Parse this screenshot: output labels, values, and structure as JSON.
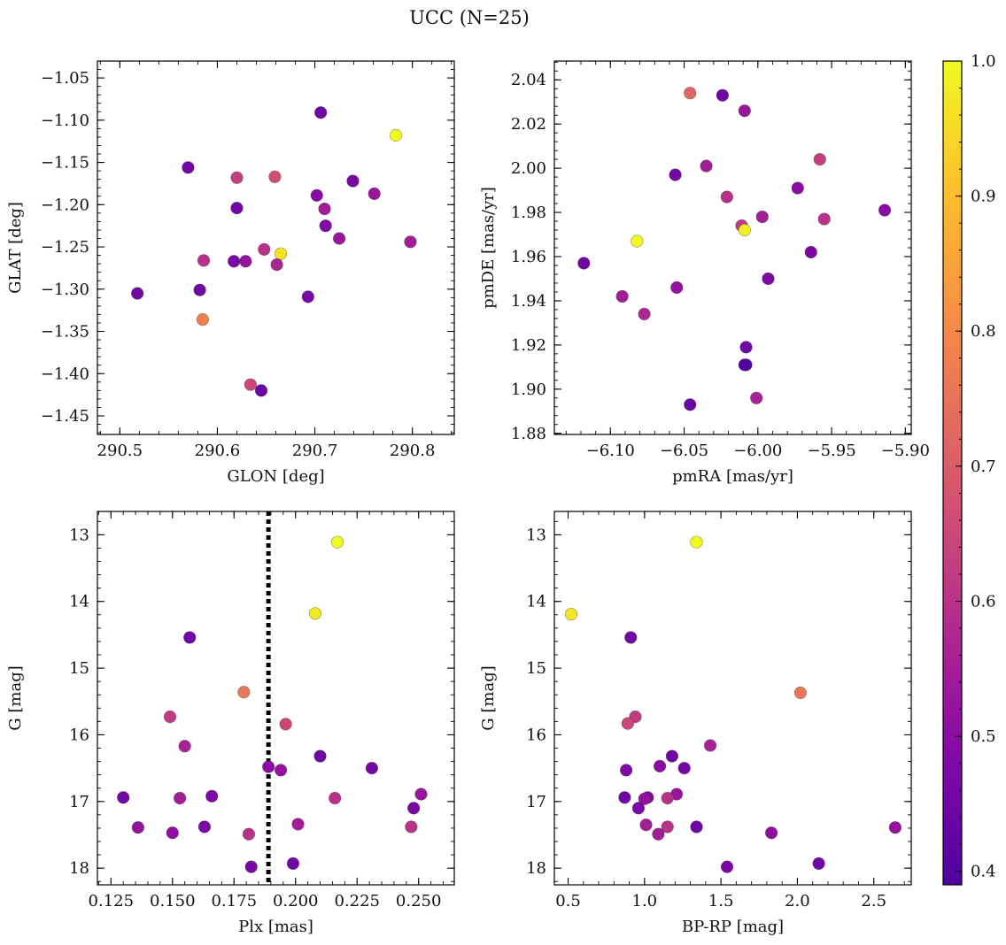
{
  "figure": {
    "title": "UCC (N=25)"
  },
  "colorbar": {
    "range": [
      0.39,
      1.0
    ],
    "ticks": [
      0.4,
      0.5,
      0.6,
      0.7,
      0.8,
      0.9,
      1.0
    ],
    "tick_labels": [
      "0.4",
      "0.5",
      "0.6",
      "0.7",
      "0.8",
      "0.9",
      "1.0"
    ],
    "colormap": "plasma"
  },
  "chart_data": [
    {
      "type": "scatter",
      "xlabel": "GLON [deg]",
      "ylabel": "GLAT [deg]",
      "xlim": [
        290.477,
        290.843
      ],
      "ylim": [
        -1.472,
        -1.03
      ],
      "xticks": [
        290.5,
        290.6,
        290.7,
        290.8
      ],
      "xtick_labels": [
        "290.5",
        "290.6",
        "290.7",
        "290.8"
      ],
      "yticks": [
        -1.45,
        -1.4,
        -1.35,
        -1.3,
        -1.25,
        -1.2,
        -1.15,
        -1.1,
        -1.05
      ],
      "ytick_labels": [
        "−1.45",
        "−1.40",
        "−1.35",
        "−1.30",
        "−1.25",
        "−1.20",
        "−1.15",
        "−1.10",
        "−1.05"
      ],
      "inverted_y": false,
      "points": [
        {
          "x": 290.706,
          "y": -1.091,
          "c": 0.45
        },
        {
          "x": 290.783,
          "y": -1.118,
          "c": 1.0
        },
        {
          "x": 290.57,
          "y": -1.156,
          "c": 0.45
        },
        {
          "x": 290.62,
          "y": -1.168,
          "c": 0.63
        },
        {
          "x": 290.659,
          "y": -1.167,
          "c": 0.67
        },
        {
          "x": 290.739,
          "y": -1.172,
          "c": 0.47
        },
        {
          "x": 290.761,
          "y": -1.187,
          "c": 0.53
        },
        {
          "x": 290.702,
          "y": -1.189,
          "c": 0.5
        },
        {
          "x": 290.62,
          "y": -1.204,
          "c": 0.45
        },
        {
          "x": 290.71,
          "y": -1.205,
          "c": 0.55
        },
        {
          "x": 290.711,
          "y": -1.225,
          "c": 0.48
        },
        {
          "x": 290.648,
          "y": -1.253,
          "c": 0.6
        },
        {
          "x": 290.665,
          "y": -1.258,
          "c": 0.96
        },
        {
          "x": 290.725,
          "y": -1.24,
          "c": 0.53
        },
        {
          "x": 290.798,
          "y": -1.244,
          "c": 0.55
        },
        {
          "x": 290.586,
          "y": -1.266,
          "c": 0.6
        },
        {
          "x": 290.617,
          "y": -1.267,
          "c": 0.47
        },
        {
          "x": 290.629,
          "y": -1.267,
          "c": 0.52
        },
        {
          "x": 290.661,
          "y": -1.271,
          "c": 0.57
        },
        {
          "x": 290.518,
          "y": -1.305,
          "c": 0.46
        },
        {
          "x": 290.582,
          "y": -1.301,
          "c": 0.45
        },
        {
          "x": 290.693,
          "y": -1.309,
          "c": 0.47
        },
        {
          "x": 290.585,
          "y": -1.336,
          "c": 0.78
        },
        {
          "x": 290.634,
          "y": -1.413,
          "c": 0.65
        },
        {
          "x": 290.645,
          "y": -1.42,
          "c": 0.44
        }
      ]
    },
    {
      "type": "scatter",
      "xlabel": "pmRA [mas/yr]",
      "ylabel": "pmDE [mas/yr]",
      "xlim": [
        -6.138,
        -5.896
      ],
      "ylim": [
        1.8795,
        2.0485
      ],
      "xticks": [
        -6.1,
        -6.05,
        -6.0,
        -5.95,
        -5.9
      ],
      "xtick_labels": [
        "−6.10",
        "−6.05",
        "−6.00",
        "−5.95",
        "−5.90"
      ],
      "yticks": [
        1.88,
        1.9,
        1.92,
        1.94,
        1.96,
        1.98,
        2.0,
        2.02,
        2.04
      ],
      "ytick_labels": [
        "1.88",
        "1.90",
        "1.92",
        "1.94",
        "1.96",
        "1.98",
        "2.00",
        "2.02",
        "2.04"
      ],
      "inverted_y": false,
      "points": [
        {
          "x": -6.046,
          "y": 2.034,
          "c": 0.72
        },
        {
          "x": -6.024,
          "y": 2.033,
          "c": 0.45
        },
        {
          "x": -6.009,
          "y": 2.026,
          "c": 0.53
        },
        {
          "x": -5.958,
          "y": 2.004,
          "c": 0.63
        },
        {
          "x": -6.035,
          "y": 2.001,
          "c": 0.55
        },
        {
          "x": -6.056,
          "y": 1.997,
          "c": 0.46
        },
        {
          "x": -5.973,
          "y": 1.991,
          "c": 0.5
        },
        {
          "x": -6.021,
          "y": 1.987,
          "c": 0.6
        },
        {
          "x": -5.914,
          "y": 1.981,
          "c": 0.5
        },
        {
          "x": -5.997,
          "y": 1.978,
          "c": 0.55
        },
        {
          "x": -5.955,
          "y": 1.977,
          "c": 0.6
        },
        {
          "x": -6.011,
          "y": 1.974,
          "c": 0.62
        },
        {
          "x": -6.009,
          "y": 1.972,
          "c": 0.98
        },
        {
          "x": -6.082,
          "y": 1.967,
          "c": 1.0
        },
        {
          "x": -5.964,
          "y": 1.962,
          "c": 0.47
        },
        {
          "x": -6.118,
          "y": 1.957,
          "c": 0.45
        },
        {
          "x": -5.993,
          "y": 1.95,
          "c": 0.48
        },
        {
          "x": -6.055,
          "y": 1.946,
          "c": 0.52
        },
        {
          "x": -6.092,
          "y": 1.942,
          "c": 0.55
        },
        {
          "x": -6.077,
          "y": 1.934,
          "c": 0.57
        },
        {
          "x": -6.008,
          "y": 1.919,
          "c": 0.45
        },
        {
          "x": -6.008,
          "y": 1.911,
          "c": 0.42
        },
        {
          "x": -6.009,
          "y": 1.911,
          "c": 0.4
        },
        {
          "x": -6.001,
          "y": 1.896,
          "c": 0.56
        },
        {
          "x": -6.046,
          "y": 1.893,
          "c": 0.44
        }
      ]
    },
    {
      "type": "scatter",
      "xlabel": "Plx [mas]",
      "ylabel": "G [mag]",
      "xlim": [
        0.1195,
        0.2645
      ],
      "ylim": [
        18.25,
        12.65
      ],
      "xticks": [
        0.125,
        0.15,
        0.175,
        0.2,
        0.225,
        0.25
      ],
      "xtick_labels": [
        "0.125",
        "0.150",
        "0.175",
        "0.200",
        "0.225",
        "0.250"
      ],
      "yticks": [
        13,
        14,
        15,
        16,
        17,
        18
      ],
      "ytick_labels": [
        "13",
        "14",
        "15",
        "16",
        "17",
        "18"
      ],
      "inverted_y": true,
      "vline": {
        "x": 0.189,
        "style": "dotted"
      },
      "points": [
        {
          "x": 0.217,
          "y": 13.11,
          "c": 1.0
        },
        {
          "x": 0.208,
          "y": 14.18,
          "c": 0.97
        },
        {
          "x": 0.157,
          "y": 14.54,
          "c": 0.45
        },
        {
          "x": 0.179,
          "y": 15.36,
          "c": 0.76
        },
        {
          "x": 0.149,
          "y": 15.73,
          "c": 0.62
        },
        {
          "x": 0.196,
          "y": 15.84,
          "c": 0.65
        },
        {
          "x": 0.155,
          "y": 16.17,
          "c": 0.56
        },
        {
          "x": 0.21,
          "y": 16.32,
          "c": 0.45
        },
        {
          "x": 0.189,
          "y": 16.48,
          "c": 0.5
        },
        {
          "x": 0.231,
          "y": 16.5,
          "c": 0.46
        },
        {
          "x": 0.194,
          "y": 16.53,
          "c": 0.52
        },
        {
          "x": 0.251,
          "y": 16.89,
          "c": 0.53
        },
        {
          "x": 0.166,
          "y": 16.92,
          "c": 0.48
        },
        {
          "x": 0.13,
          "y": 16.94,
          "c": 0.45
        },
        {
          "x": 0.153,
          "y": 16.95,
          "c": 0.55
        },
        {
          "x": 0.216,
          "y": 16.95,
          "c": 0.6
        },
        {
          "x": 0.248,
          "y": 17.1,
          "c": 0.47
        },
        {
          "x": 0.201,
          "y": 17.34,
          "c": 0.55
        },
        {
          "x": 0.136,
          "y": 17.39,
          "c": 0.52
        },
        {
          "x": 0.163,
          "y": 17.38,
          "c": 0.47
        },
        {
          "x": 0.247,
          "y": 17.38,
          "c": 0.6
        },
        {
          "x": 0.15,
          "y": 17.47,
          "c": 0.51
        },
        {
          "x": 0.181,
          "y": 17.49,
          "c": 0.6
        },
        {
          "x": 0.182,
          "y": 17.98,
          "c": 0.47
        },
        {
          "x": 0.199,
          "y": 17.93,
          "c": 0.45
        }
      ]
    },
    {
      "type": "scatter",
      "xlabel": "BP-RP [mag]",
      "ylabel": "G [mag]",
      "xlim": [
        0.41,
        2.745
      ],
      "ylim": [
        18.25,
        12.65
      ],
      "xticks": [
        0.5,
        1.0,
        1.5,
        2.0,
        2.5
      ],
      "xtick_labels": [
        "0.5",
        "1.0",
        "1.5",
        "2.0",
        "2.5"
      ],
      "yticks": [
        13,
        14,
        15,
        16,
        17,
        18
      ],
      "ytick_labels": [
        "13",
        "14",
        "15",
        "16",
        "17",
        "18"
      ],
      "inverted_y": true,
      "points": [
        {
          "x": 1.34,
          "y": 13.11,
          "c": 1.0
        },
        {
          "x": 0.52,
          "y": 14.19,
          "c": 0.97
        },
        {
          "x": 0.91,
          "y": 14.54,
          "c": 0.45
        },
        {
          "x": 2.02,
          "y": 15.37,
          "c": 0.76
        },
        {
          "x": 0.94,
          "y": 15.73,
          "c": 0.62
        },
        {
          "x": 0.89,
          "y": 15.83,
          "c": 0.65
        },
        {
          "x": 1.43,
          "y": 16.16,
          "c": 0.56
        },
        {
          "x": 1.18,
          "y": 16.32,
          "c": 0.45
        },
        {
          "x": 1.1,
          "y": 16.47,
          "c": 0.5
        },
        {
          "x": 1.26,
          "y": 16.5,
          "c": 0.46
        },
        {
          "x": 0.88,
          "y": 16.53,
          "c": 0.48
        },
        {
          "x": 1.21,
          "y": 16.89,
          "c": 0.53
        },
        {
          "x": 0.87,
          "y": 16.94,
          "c": 0.45
        },
        {
          "x": 1.02,
          "y": 16.94,
          "c": 0.48
        },
        {
          "x": 1.0,
          "y": 16.96,
          "c": 0.52
        },
        {
          "x": 1.15,
          "y": 16.95,
          "c": 0.6
        },
        {
          "x": 0.96,
          "y": 17.1,
          "c": 0.47
        },
        {
          "x": 1.01,
          "y": 17.35,
          "c": 0.55
        },
        {
          "x": 1.15,
          "y": 17.38,
          "c": 0.6
        },
        {
          "x": 1.34,
          "y": 17.38,
          "c": 0.45
        },
        {
          "x": 2.64,
          "y": 17.39,
          "c": 0.52
        },
        {
          "x": 1.09,
          "y": 17.49,
          "c": 0.55
        },
        {
          "x": 1.83,
          "y": 17.47,
          "c": 0.51
        },
        {
          "x": 2.14,
          "y": 17.93,
          "c": 0.45
        },
        {
          "x": 1.54,
          "y": 17.98,
          "c": 0.47
        }
      ]
    }
  ]
}
